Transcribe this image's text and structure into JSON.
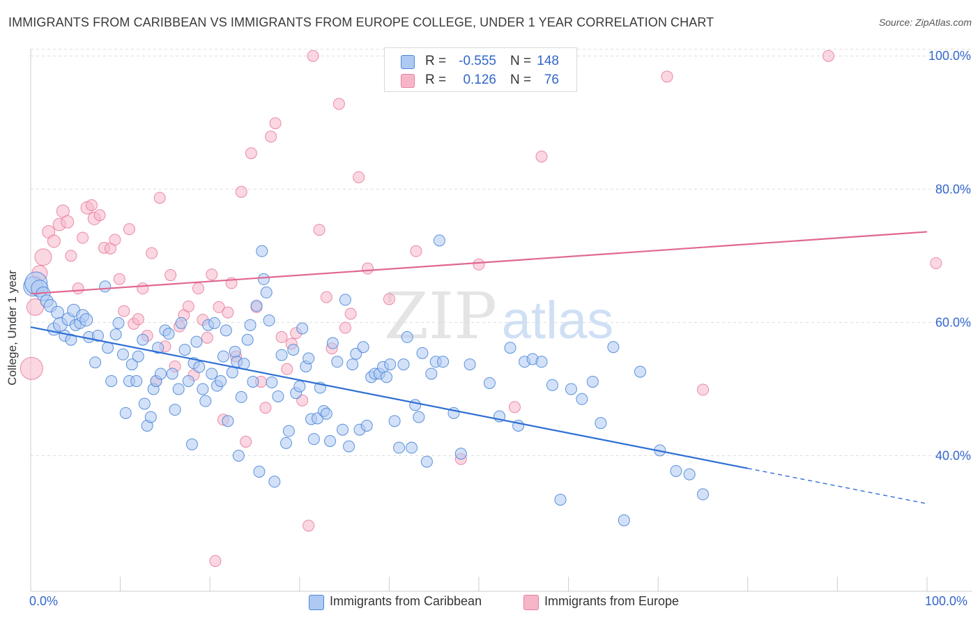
{
  "title": "IMMIGRANTS FROM CARIBBEAN VS IMMIGRANTS FROM EUROPE COLLEGE, UNDER 1 YEAR CORRELATION CHART",
  "source": "Source: ZipAtlas.com",
  "watermark": {
    "zip": "ZIP",
    "atlas": "atlas"
  },
  "legend_stats": [
    {
      "r_label": "R =",
      "r_value": "-0.555",
      "n_label": "N =",
      "n_value": "148",
      "color": "#aec9f2"
    },
    {
      "r_label": "R =",
      "r_value": "0.126",
      "n_label": "N =",
      "n_value": "76",
      "color": "#f7b6c8"
    }
  ],
  "colors": {
    "caribbean_fill": "#aec9f2",
    "caribbean_stroke": "#4a86d8",
    "caribbean_line": "#2e6fd3",
    "europe_fill": "#f7b6c8",
    "europe_stroke": "#e77ea0",
    "europe_line": "#e0678f",
    "tick_label": "#3366cc",
    "grid": "#dddddd"
  },
  "chart_data": {
    "type": "scatter",
    "title": "IMMIGRANTS FROM CARIBBEAN VS IMMIGRANTS FROM EUROPE COLLEGE, UNDER 1 YEAR CORRELATION CHART",
    "xlabel": "",
    "ylabel": "College, Under 1 year",
    "xlim": [
      0,
      100
    ],
    "ylim": [
      20,
      101
    ],
    "x_tick_labels": [
      "0.0%",
      "100.0%"
    ],
    "y_ticks": [
      40,
      60,
      80,
      100
    ],
    "y_tick_labels": [
      "40.0%",
      "60.0%",
      "80.0%",
      "100.0%"
    ],
    "grid": "horizontal dashed",
    "legend_placement": "bottom-center",
    "series": [
      {
        "name": "Immigrants from Caribbean",
        "r": -0.555,
        "n": 148,
        "trend": {
          "x": [
            0,
            100
          ],
          "y": [
            59.3,
            32.8
          ],
          "solid_until_x": 80
        },
        "points": [
          [
            0.3,
            65.4,
            14
          ],
          [
            0.6,
            65.9,
            16
          ],
          [
            1.0,
            65.1,
            12
          ],
          [
            1.4,
            64.3,
            10
          ],
          [
            1.8,
            63.2,
            9
          ],
          [
            2.2,
            62.5,
            9
          ],
          [
            2.6,
            59.0,
            9
          ],
          [
            3.0,
            61.5,
            9
          ],
          [
            3.3,
            59.7,
            10
          ],
          [
            3.8,
            58.0,
            8
          ],
          [
            4.2,
            60.5,
            9
          ],
          [
            4.5,
            57.4,
            8
          ],
          [
            4.8,
            61.8,
            9
          ],
          [
            5.0,
            59.6,
            8
          ],
          [
            5.5,
            59.9,
            8
          ],
          [
            5.8,
            61.0,
            9
          ],
          [
            6.2,
            60.4,
            9
          ],
          [
            6.5,
            57.8,
            8
          ],
          [
            7.2,
            54.0,
            8
          ],
          [
            7.5,
            58.0,
            8
          ],
          [
            8.3,
            65.4,
            8
          ],
          [
            8.6,
            56.2,
            8
          ],
          [
            9.0,
            51.2,
            8
          ],
          [
            9.5,
            58.2,
            8
          ],
          [
            9.8,
            59.9,
            8
          ],
          [
            10.3,
            55.2,
            8
          ],
          [
            10.6,
            46.4,
            8
          ],
          [
            11.0,
            51.2,
            8
          ],
          [
            11.3,
            53.7,
            8
          ],
          [
            11.8,
            51.2,
            8
          ],
          [
            12.0,
            54.9,
            8
          ],
          [
            12.5,
            57.4,
            8
          ],
          [
            12.7,
            47.8,
            8
          ],
          [
            13.0,
            44.5,
            8
          ],
          [
            13.4,
            45.8,
            8
          ],
          [
            13.7,
            50.0,
            8
          ],
          [
            14.0,
            51.2,
            8
          ],
          [
            14.2,
            56.2,
            8
          ],
          [
            14.5,
            52.3,
            8
          ],
          [
            15.0,
            58.8,
            8
          ],
          [
            15.4,
            58.3,
            8
          ],
          [
            15.8,
            52.3,
            8
          ],
          [
            16.1,
            46.9,
            8
          ],
          [
            16.5,
            50.0,
            8
          ],
          [
            16.8,
            59.9,
            8
          ],
          [
            17.2,
            55.9,
            8
          ],
          [
            17.6,
            51.2,
            8
          ],
          [
            18.0,
            41.7,
            8
          ],
          [
            18.2,
            53.9,
            8
          ],
          [
            18.5,
            57.1,
            8
          ],
          [
            18.8,
            53.3,
            8
          ],
          [
            19.2,
            50.0,
            8
          ],
          [
            19.5,
            48.2,
            8
          ],
          [
            19.8,
            59.6,
            8
          ],
          [
            20.2,
            52.3,
            8
          ],
          [
            20.5,
            59.9,
            8
          ],
          [
            20.8,
            50.5,
            8
          ],
          [
            21.2,
            51.2,
            8
          ],
          [
            21.5,
            54.9,
            8
          ],
          [
            21.8,
            58.8,
            8
          ],
          [
            22.0,
            45.2,
            8
          ],
          [
            22.5,
            52.5,
            8
          ],
          [
            22.8,
            55.6,
            8
          ],
          [
            23.0,
            54.1,
            8
          ],
          [
            23.2,
            40.0,
            8
          ],
          [
            23.5,
            48.8,
            8
          ],
          [
            23.8,
            53.8,
            8
          ],
          [
            24.2,
            57.4,
            8
          ],
          [
            24.5,
            59.6,
            8
          ],
          [
            24.8,
            51.1,
            8
          ],
          [
            25.2,
            62.5,
            8
          ],
          [
            25.5,
            37.6,
            8
          ],
          [
            25.8,
            70.7,
            8
          ],
          [
            26.0,
            66.5,
            8
          ],
          [
            26.3,
            64.5,
            8
          ],
          [
            26.6,
            60.3,
            8
          ],
          [
            26.9,
            51.0,
            8
          ],
          [
            27.2,
            36.1,
            8
          ],
          [
            27.6,
            48.9,
            8
          ],
          [
            28.0,
            55.1,
            8
          ],
          [
            28.5,
            41.9,
            8
          ],
          [
            28.8,
            43.7,
            8
          ],
          [
            29.3,
            55.9,
            8
          ],
          [
            29.6,
            49.4,
            8
          ],
          [
            30.0,
            50.4,
            8
          ],
          [
            30.3,
            59.1,
            8
          ],
          [
            30.7,
            53.4,
            8
          ],
          [
            31.0,
            54.6,
            8
          ],
          [
            31.3,
            45.5,
            8
          ],
          [
            31.6,
            42.5,
            8
          ],
          [
            32.0,
            45.6,
            8
          ],
          [
            32.3,
            50.2,
            8
          ],
          [
            32.7,
            46.7,
            8
          ],
          [
            33.0,
            46.3,
            8
          ],
          [
            33.4,
            42.2,
            8
          ],
          [
            33.7,
            56.9,
            8
          ],
          [
            34.2,
            54.1,
            8
          ],
          [
            34.8,
            43.9,
            8
          ],
          [
            35.1,
            63.4,
            8
          ],
          [
            35.5,
            41.4,
            8
          ],
          [
            35.9,
            53.7,
            8
          ],
          [
            36.3,
            55.3,
            8
          ],
          [
            36.7,
            43.9,
            8
          ],
          [
            37.1,
            56.3,
            8
          ],
          [
            37.5,
            44.5,
            8
          ],
          [
            38.0,
            51.8,
            8
          ],
          [
            38.4,
            52.3,
            8
          ],
          [
            38.9,
            52.3,
            8
          ],
          [
            39.3,
            53.3,
            8
          ],
          [
            39.7,
            51.8,
            8
          ],
          [
            40.1,
            53.7,
            8
          ],
          [
            40.6,
            45.2,
            8
          ],
          [
            41.1,
            41.2,
            8
          ],
          [
            41.6,
            53.7,
            8
          ],
          [
            42.0,
            57.8,
            8
          ],
          [
            42.5,
            41.2,
            8
          ],
          [
            42.9,
            47.6,
            8
          ],
          [
            43.3,
            45.8,
            8
          ],
          [
            43.7,
            55.4,
            8
          ],
          [
            44.2,
            39.1,
            8
          ],
          [
            44.7,
            52.3,
            8
          ],
          [
            45.2,
            54.1,
            8
          ],
          [
            45.6,
            72.3,
            8
          ],
          [
            46.0,
            54.1,
            8
          ],
          [
            47.2,
            46.4,
            8
          ],
          [
            48.0,
            40.3,
            8
          ],
          [
            49.0,
            53.7,
            8
          ],
          [
            51.2,
            50.9,
            8
          ],
          [
            52.3,
            45.9,
            8
          ],
          [
            53.5,
            56.2,
            8
          ],
          [
            54.4,
            44.5,
            8
          ],
          [
            55.1,
            54.1,
            8
          ],
          [
            56.0,
            54.5,
            8
          ],
          [
            57.0,
            54.1,
            8
          ],
          [
            58.2,
            50.6,
            8
          ],
          [
            59.1,
            33.4,
            8
          ],
          [
            60.3,
            50.0,
            8
          ],
          [
            61.5,
            48.5,
            8
          ],
          [
            62.7,
            51.1,
            8
          ],
          [
            63.6,
            44.9,
            8
          ],
          [
            65.0,
            56.3,
            8
          ],
          [
            66.2,
            30.3,
            8
          ],
          [
            68.0,
            52.6,
            8
          ],
          [
            70.2,
            40.8,
            8
          ],
          [
            72.0,
            37.7,
            8
          ],
          [
            73.5,
            37.2,
            8
          ],
          [
            75.0,
            34.2,
            8
          ]
        ]
      },
      {
        "name": "Immigrants from Europe",
        "r": 0.126,
        "n": 76,
        "trend": {
          "x": [
            0,
            100
          ],
          "y": [
            64.3,
            73.6
          ]
        },
        "points": [
          [
            0.1,
            53.1,
            16
          ],
          [
            0.5,
            62.3,
            12
          ],
          [
            1.0,
            67.4,
            11
          ],
          [
            1.4,
            69.8,
            12
          ],
          [
            2.0,
            73.6,
            9
          ],
          [
            2.6,
            72.2,
            9
          ],
          [
            3.2,
            74.7,
            9
          ],
          [
            3.6,
            76.7,
            9
          ],
          [
            4.1,
            75.1,
            9
          ],
          [
            4.5,
            70.0,
            8
          ],
          [
            5.3,
            65.1,
            8
          ],
          [
            5.8,
            72.7,
            8
          ],
          [
            6.3,
            77.2,
            9
          ],
          [
            6.8,
            77.6,
            8
          ],
          [
            7.1,
            75.6,
            9
          ],
          [
            7.7,
            76.1,
            8
          ],
          [
            8.2,
            71.2,
            8
          ],
          [
            8.9,
            71.1,
            8
          ],
          [
            9.4,
            72.4,
            8
          ],
          [
            9.9,
            66.5,
            8
          ],
          [
            10.4,
            61.7,
            8
          ],
          [
            11.0,
            74.0,
            8
          ],
          [
            11.5,
            59.8,
            8
          ],
          [
            12.0,
            60.5,
            8
          ],
          [
            12.5,
            65.1,
            8
          ],
          [
            13.0,
            58.0,
            8
          ],
          [
            13.5,
            70.4,
            8
          ],
          [
            14.0,
            51.2,
            8
          ],
          [
            14.4,
            78.7,
            8
          ],
          [
            15.0,
            56.4,
            8
          ],
          [
            15.6,
            67.1,
            8
          ],
          [
            16.1,
            53.4,
            8
          ],
          [
            16.6,
            59.4,
            8
          ],
          [
            17.1,
            61.1,
            8
          ],
          [
            17.6,
            62.4,
            8
          ],
          [
            18.2,
            52.1,
            8
          ],
          [
            18.7,
            65.1,
            8
          ],
          [
            19.2,
            60.4,
            8
          ],
          [
            19.7,
            57.7,
            8
          ],
          [
            20.2,
            67.2,
            8
          ],
          [
            20.6,
            24.2,
            8
          ],
          [
            21.0,
            62.3,
            8
          ],
          [
            21.5,
            45.4,
            8
          ],
          [
            22.0,
            61.5,
            8
          ],
          [
            22.4,
            65.9,
            8
          ],
          [
            22.9,
            54.9,
            8
          ],
          [
            23.5,
            79.6,
            8
          ],
          [
            24.0,
            42.1,
            8
          ],
          [
            24.6,
            85.4,
            8
          ],
          [
            25.2,
            62.3,
            8
          ],
          [
            25.7,
            51.1,
            8
          ],
          [
            26.2,
            47.2,
            8
          ],
          [
            26.8,
            87.9,
            8
          ],
          [
            27.3,
            89.9,
            8
          ],
          [
            28.0,
            57.8,
            8
          ],
          [
            28.6,
            53.0,
            8
          ],
          [
            29.1,
            56.8,
            8
          ],
          [
            29.6,
            58.4,
            8
          ],
          [
            30.3,
            48.3,
            8
          ],
          [
            31.0,
            29.5,
            8
          ],
          [
            31.5,
            100.0,
            8
          ],
          [
            32.2,
            73.9,
            8
          ],
          [
            33.0,
            63.8,
            8
          ],
          [
            33.6,
            56.1,
            8
          ],
          [
            34.4,
            92.8,
            8
          ],
          [
            35.1,
            59.2,
            8
          ],
          [
            35.7,
            61.3,
            8
          ],
          [
            36.6,
            81.8,
            8
          ],
          [
            37.6,
            68.1,
            8
          ],
          [
            40.0,
            63.5,
            8
          ],
          [
            43.0,
            70.7,
            8
          ],
          [
            48.0,
            39.5,
            8
          ],
          [
            50.0,
            68.7,
            8
          ],
          [
            54.0,
            47.3,
            8
          ],
          [
            57.0,
            84.9,
            8
          ],
          [
            71.0,
            96.9,
            8
          ],
          [
            75.0,
            49.9,
            8
          ],
          [
            89.0,
            100.0,
            8
          ],
          [
            101.0,
            68.9,
            8
          ]
        ]
      }
    ]
  },
  "bottom_legend": [
    {
      "label": "Immigrants from Caribbean",
      "color": "#aec9f2"
    },
    {
      "label": "Immigrants from Europe",
      "color": "#f7b6c8"
    }
  ]
}
